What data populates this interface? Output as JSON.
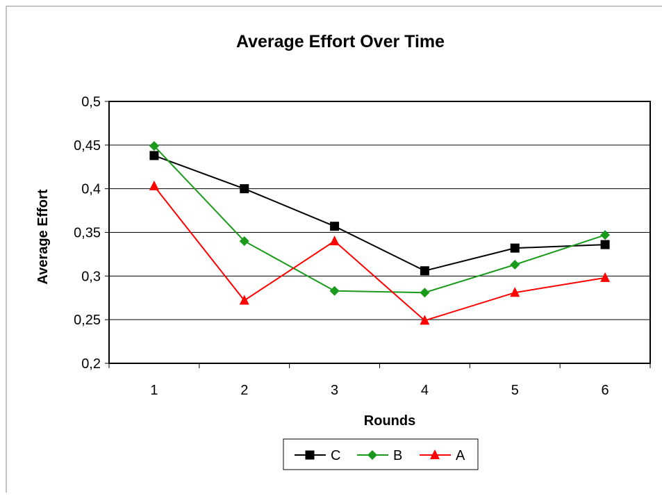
{
  "chart_data": {
    "type": "line",
    "title": "Average Effort Over Time",
    "xlabel": "Rounds",
    "ylabel": "Average Effort",
    "categories": [
      "1",
      "2",
      "3",
      "4",
      "5",
      "6"
    ],
    "ylim": [
      0.2,
      0.5
    ],
    "yticks": [
      0.2,
      0.25,
      0.3,
      0.35,
      0.4,
      0.45,
      0.5
    ],
    "ytick_labels": [
      "0,2",
      "0,25",
      "0,3",
      "0,35",
      "0,4",
      "0,45",
      "0,5"
    ],
    "grid": "horizontal",
    "legend_position": "bottom",
    "series": [
      {
        "name": "C",
        "color": "#000000",
        "marker": "square",
        "values": [
          0.438,
          0.4,
          0.357,
          0.306,
          0.332,
          0.336
        ]
      },
      {
        "name": "B",
        "color": "#1a9a1a",
        "marker": "diamond",
        "values": [
          0.449,
          0.34,
          0.283,
          0.281,
          0.313,
          0.347
        ]
      },
      {
        "name": "A",
        "color": "#ff0000",
        "marker": "triangle",
        "values": [
          0.403,
          0.272,
          0.34,
          0.249,
          0.281,
          0.298
        ]
      }
    ]
  }
}
